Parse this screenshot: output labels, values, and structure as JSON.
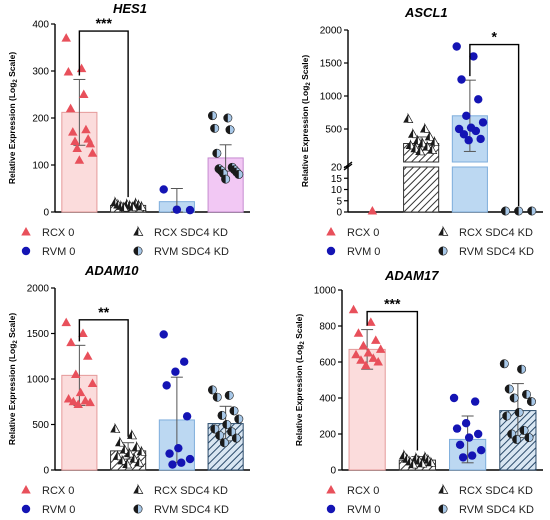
{
  "series_names": [
    "RCX 0",
    "RCX SDC4 KD",
    "RVM 0",
    "RVM SDC4 KD"
  ],
  "colors": {
    "rcx0_point": "#e8505b",
    "rcx0_bar": "#fbdcdc",
    "rcx0_bar_edge": "#e59a9a",
    "kd_point": "#1a1a1a",
    "rvm0_point": "#1414b4",
    "rvm0_bar": "#bcd8f2",
    "rvm0_bar_edge": "#7eaedc",
    "rvmkd_point": "#a8c8e8",
    "hes1_rvmkd_bar": "#f2c8f4",
    "hes1_rvmkd_edge": "#c58bd0",
    "hatch": "#333333"
  },
  "chart_data": [
    {
      "type": "bar",
      "title": "HES1",
      "ylabel": "Relative Expression (Log2 Scale)",
      "ylim": [
        0,
        400
      ],
      "yticks": [
        0,
        100,
        200,
        300,
        400
      ],
      "ytick_labels": [
        "0",
        "100",
        "200",
        "300",
        "400"
      ],
      "categories": [
        "RCX 0",
        "RCX SDC4 KD",
        "RVM 0",
        "RVM SDC4 KD"
      ],
      "values": [
        212,
        14,
        22,
        115
      ],
      "errors": [
        70,
        5,
        28,
        28
      ],
      "points": [
        [
          370,
          305,
          298,
          250,
          220,
          175,
          170,
          155,
          150,
          145,
          135,
          125,
          110
        ],
        [
          20,
          18,
          16,
          15,
          14,
          13,
          12,
          11,
          10,
          9
        ],
        [
          48,
          5,
          4
        ],
        [
          205,
          200,
          178,
          175,
          125,
          95,
          92,
          90,
          88,
          85,
          82,
          80,
          70
        ]
      ],
      "significance": [
        {
          "from": 0,
          "to": 1,
          "label": "***",
          "y": 385
        }
      ]
    },
    {
      "type": "bar",
      "title": "ASCL1",
      "ylabel": "Relative Expression (Log2 Scale)",
      "axis_break": true,
      "lower_ylim": [
        0,
        20
      ],
      "upper_ylim": [
        0,
        2000
      ],
      "lower_yticks": [
        0,
        5,
        10,
        15,
        20
      ],
      "upper_yticks": [
        500,
        1000,
        1500,
        2000
      ],
      "ytick_labels": [
        "0",
        "5",
        "10",
        "15",
        "20",
        "500",
        "1000",
        "1500",
        "2000"
      ],
      "categories": [
        "RCX 0",
        "RCX SDC4 KD",
        "RVM 0",
        "RVM SDC4 KD"
      ],
      "values": [
        0,
        280,
        700,
        0
      ],
      "errors": [
        0,
        100,
        540,
        0
      ],
      "points": [
        [
          0
        ],
        [
          650,
          500,
          420,
          380,
          320,
          300,
          280,
          250,
          230,
          200,
          180,
          160
        ],
        [
          1750,
          1600,
          1250,
          950,
          700,
          600,
          520,
          500,
          470,
          420,
          350,
          330
        ],
        [
          0,
          0,
          0
        ]
      ],
      "significance": [
        {
          "from": 2,
          "to": 3,
          "label": "*",
          "y": 1780
        }
      ]
    },
    {
      "type": "bar",
      "title": "ADAM10",
      "ylabel": "Relative Expression (Log2 Scale)",
      "ylim": [
        0,
        2000
      ],
      "yticks": [
        0,
        500,
        1000,
        1500,
        2000
      ],
      "ytick_labels": [
        "0",
        "500",
        "1000",
        "1500",
        "2000"
      ],
      "categories": [
        "RCX 0",
        "RCX SDC4 KD",
        "RVM 0",
        "RVM SDC4 KD"
      ],
      "values": [
        1040,
        210,
        550,
        510
      ],
      "errors": [
        330,
        90,
        470,
        190
      ],
      "points": [
        [
          1620,
          1500,
          1400,
          1250,
          1050,
          950,
          850,
          780,
          760,
          750,
          740,
          720
        ],
        [
          450,
          380,
          300,
          250,
          220,
          200,
          180,
          150,
          120,
          100,
          80,
          60
        ],
        [
          1490,
          1190,
          1080,
          930,
          590,
          240,
          180,
          120,
          80,
          60
        ],
        [
          880,
          820,
          800,
          650,
          600,
          560,
          500,
          450,
          420,
          380,
          350,
          300
        ]
      ],
      "significance": [
        {
          "from": 0,
          "to": 1,
          "label": "**",
          "y": 1650
        }
      ]
    },
    {
      "type": "bar",
      "title": "ADAM17",
      "ylabel": "Relative Expression (Log2 Scale)",
      "ylim": [
        0,
        1000
      ],
      "yticks": [
        0,
        200,
        400,
        600,
        800,
        1000
      ],
      "ytick_labels": [
        "0",
        "200",
        "400",
        "600",
        "800",
        "1000"
      ],
      "categories": [
        "RCX 0",
        "RCX SDC4 KD",
        "RVM 0",
        "RVM SDC4 KD"
      ],
      "values": [
        670,
        55,
        170,
        330
      ],
      "errors": [
        110,
        20,
        130,
        150
      ],
      "points": [
        [
          890,
          820,
          760,
          720,
          690,
          670,
          650,
          640,
          620,
          610,
          600,
          580
        ],
        [
          80,
          70,
          65,
          60,
          55,
          50,
          45,
          40,
          35,
          30
        ],
        [
          400,
          380,
          260,
          230,
          200,
          180,
          140,
          110,
          80,
          70
        ],
        [
          590,
          560,
          450,
          420,
          400,
          380,
          320,
          300,
          220,
          200,
          180,
          170
        ]
      ],
      "significance": [
        {
          "from": 0,
          "to": 1,
          "label": "***",
          "y": 880
        }
      ]
    }
  ]
}
